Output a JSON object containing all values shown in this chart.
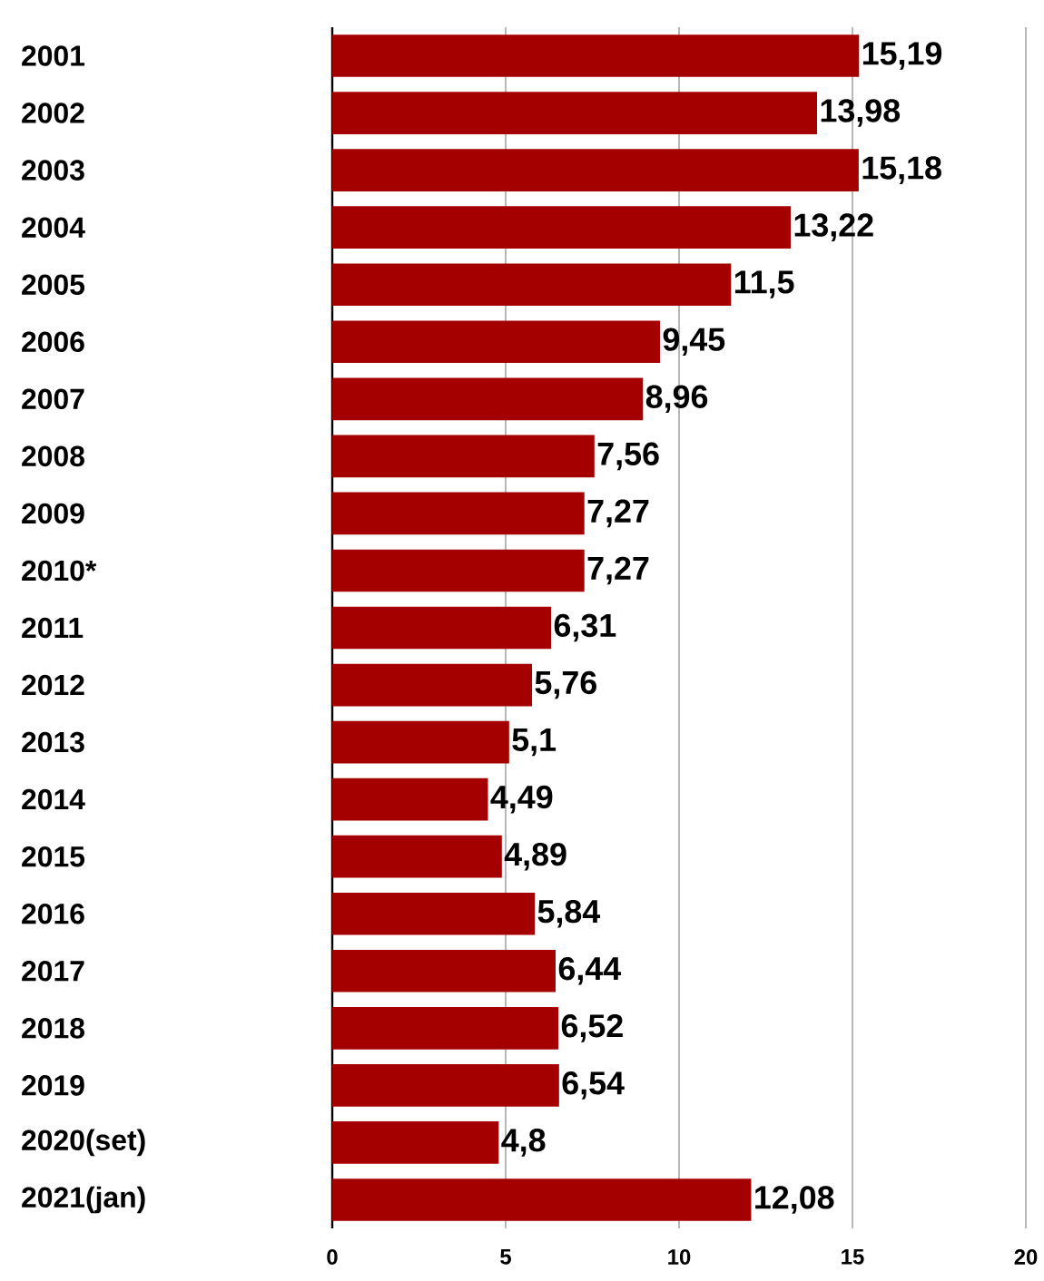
{
  "chart_data": {
    "type": "bar",
    "orientation": "horizontal",
    "categories": [
      "2001",
      "2002",
      "2003",
      "2004",
      "2005",
      "2006",
      "2007",
      "2008",
      "2009",
      "2010*",
      "2011",
      "2012",
      "2013",
      "2014",
      "2015",
      "2016",
      "2017",
      "2018",
      "2019",
      "2020(set)",
      "2021(jan)"
    ],
    "values": [
      15.19,
      13.98,
      15.18,
      13.22,
      11.5,
      9.45,
      8.96,
      7.56,
      7.27,
      7.27,
      6.31,
      5.76,
      5.1,
      4.49,
      4.89,
      5.84,
      6.44,
      6.52,
      6.54,
      4.8,
      12.08
    ],
    "value_labels": [
      "15,19",
      "13,98",
      "15,18",
      "13,22",
      "11,5",
      "9,45",
      "8,96",
      "7,56",
      "7,27",
      "7,27",
      "6,31",
      "5,76",
      "5,1",
      "4,49",
      "4,89",
      "5,84",
      "6,44",
      "6,52",
      "6,54",
      "4,8",
      "12,08"
    ],
    "color": "#a50000",
    "xlim": [
      0,
      20
    ],
    "xticks": [
      0,
      5,
      10,
      15,
      20
    ],
    "grid": "x"
  }
}
